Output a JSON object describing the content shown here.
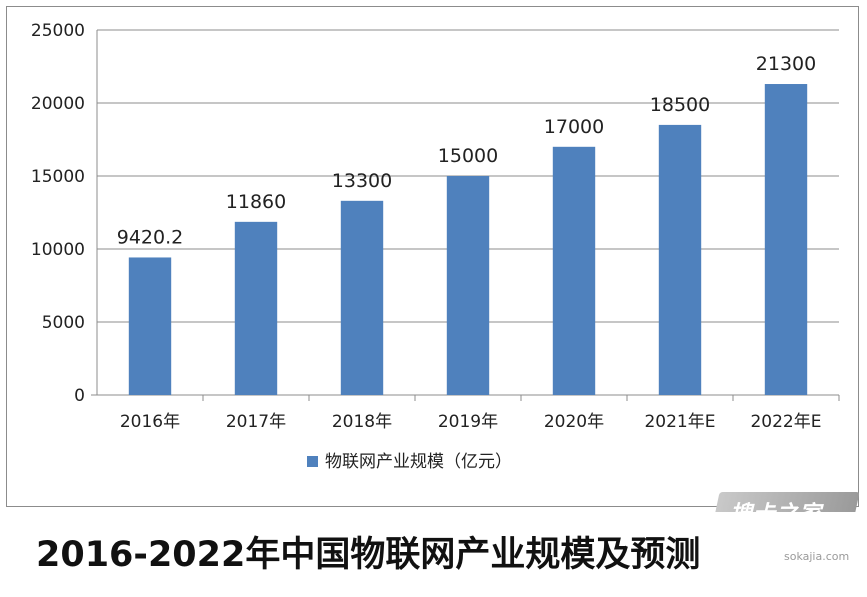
{
  "chart_data": {
    "type": "bar",
    "categories": [
      "2016年",
      "2017年",
      "2018年",
      "2019年",
      "2020年",
      "2021年E",
      "2022年E"
    ],
    "series": [
      {
        "name": "物联网产业规模（亿元）",
        "values": [
          9420.2,
          11860,
          13300,
          15000,
          17000,
          18500,
          21300
        ]
      }
    ],
    "data_labels": [
      "9420.2",
      "11860",
      "13300",
      "15000",
      "17000",
      "18500",
      "21300"
    ],
    "title": "",
    "xlabel": "",
    "ylabel": "",
    "ylim": [
      0,
      25000
    ],
    "yticks": [
      0,
      5000,
      10000,
      15000,
      20000,
      25000
    ],
    "grid": true,
    "legend_position": "bottom",
    "bar_color": "#4f81bd",
    "grid_color": "#8c8c8c"
  },
  "caption": "2016-2022年中国物联网产业规模及预测",
  "watermark": {
    "logo_text": "搜卡之家",
    "url": "sokajia.com"
  }
}
